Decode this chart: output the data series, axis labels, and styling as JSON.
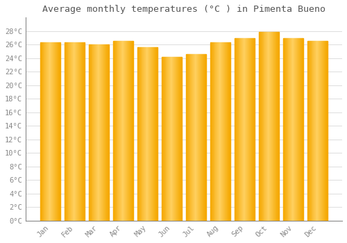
{
  "title": "Average monthly temperatures (°C ) in Pimenta Bueno",
  "months": [
    "Jan",
    "Feb",
    "Mar",
    "Apr",
    "May",
    "Jun",
    "Jul",
    "Aug",
    "Sep",
    "Oct",
    "Nov",
    "Dec"
  ],
  "values": [
    26.3,
    26.3,
    26.0,
    26.5,
    25.6,
    24.2,
    24.6,
    26.3,
    27.0,
    27.9,
    27.0,
    26.5
  ],
  "bar_color_left": "#F5A800",
  "bar_color_center": "#FFD060",
  "bar_color_right": "#F5A800",
  "background_color": "#FFFFFF",
  "plot_bg_color": "#FFFFFF",
  "grid_color": "#DDDDDD",
  "text_color": "#888888",
  "title_color": "#555555",
  "ylim": [
    0,
    30
  ],
  "yticks": [
    0,
    2,
    4,
    6,
    8,
    10,
    12,
    14,
    16,
    18,
    20,
    22,
    24,
    26,
    28
  ],
  "title_fontsize": 9.5,
  "tick_fontsize": 7.5,
  "bar_width": 0.85
}
